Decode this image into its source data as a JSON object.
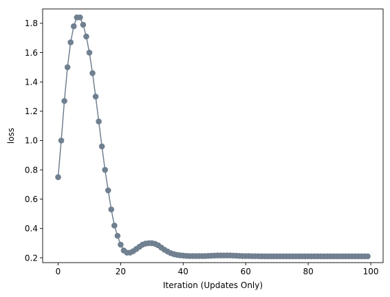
{
  "chart_data": {
    "type": "line",
    "xlabel": "Iteration (Updates Only)",
    "ylabel": "loss",
    "xlim": [
      -4.95,
      103.95
    ],
    "ylim": [
      0.167,
      1.898
    ],
    "grid": false,
    "marker": "circle",
    "color": "#708090",
    "x_ticks": [
      0,
      20,
      40,
      60,
      80,
      100
    ],
    "x_tick_labels": [
      "0",
      "20",
      "40",
      "60",
      "80",
      "100"
    ],
    "y_ticks": [
      0.2,
      0.4,
      0.6,
      0.8,
      1.0,
      1.2,
      1.4,
      1.6,
      1.8
    ],
    "y_tick_labels": [
      "0.2",
      "0.4",
      "0.6",
      "0.8",
      "1.0",
      "1.2",
      "1.4",
      "1.6",
      "1.8"
    ],
    "x": [
      0,
      1,
      2,
      3,
      4,
      5,
      6,
      7,
      8,
      9,
      10,
      11,
      12,
      13,
      14,
      15,
      16,
      17,
      18,
      19,
      20,
      21,
      22,
      23,
      24,
      25,
      26,
      27,
      28,
      29,
      30,
      31,
      32,
      33,
      34,
      35,
      36,
      37,
      38,
      39,
      40,
      41,
      42,
      43,
      44,
      45,
      46,
      47,
      48,
      49,
      50,
      51,
      52,
      53,
      54,
      55,
      56,
      57,
      58,
      59,
      60,
      61,
      62,
      63,
      64,
      65,
      66,
      67,
      68,
      69,
      70,
      71,
      72,
      73,
      74,
      75,
      76,
      77,
      78,
      79,
      80,
      81,
      82,
      83,
      84,
      85,
      86,
      87,
      88,
      89,
      90,
      91,
      92,
      93,
      94,
      95,
      96,
      97,
      98,
      99
    ],
    "y": [
      0.75,
      1.0,
      1.27,
      1.5,
      1.67,
      1.78,
      1.84,
      1.84,
      1.79,
      1.71,
      1.6,
      1.46,
      1.3,
      1.13,
      0.96,
      0.8,
      0.66,
      0.53,
      0.42,
      0.35,
      0.29,
      0.25,
      0.235,
      0.235,
      0.245,
      0.26,
      0.275,
      0.29,
      0.297,
      0.3,
      0.3,
      0.295,
      0.285,
      0.27,
      0.255,
      0.243,
      0.232,
      0.225,
      0.22,
      0.217,
      0.215,
      0.213,
      0.212,
      0.212,
      0.212,
      0.212,
      0.212,
      0.212,
      0.213,
      0.214,
      0.215,
      0.216,
      0.216,
      0.216,
      0.216,
      0.216,
      0.215,
      0.214,
      0.213,
      0.212,
      0.212,
      0.212,
      0.211,
      0.211,
      0.211,
      0.21,
      0.21,
      0.21,
      0.21,
      0.21,
      0.21,
      0.21,
      0.21,
      0.21,
      0.21,
      0.21,
      0.21,
      0.21,
      0.21,
      0.21,
      0.21,
      0.21,
      0.21,
      0.21,
      0.21,
      0.21,
      0.21,
      0.21,
      0.21,
      0.21,
      0.21,
      0.21,
      0.21,
      0.21,
      0.21,
      0.21,
      0.21,
      0.21,
      0.21,
      0.21
    ]
  }
}
